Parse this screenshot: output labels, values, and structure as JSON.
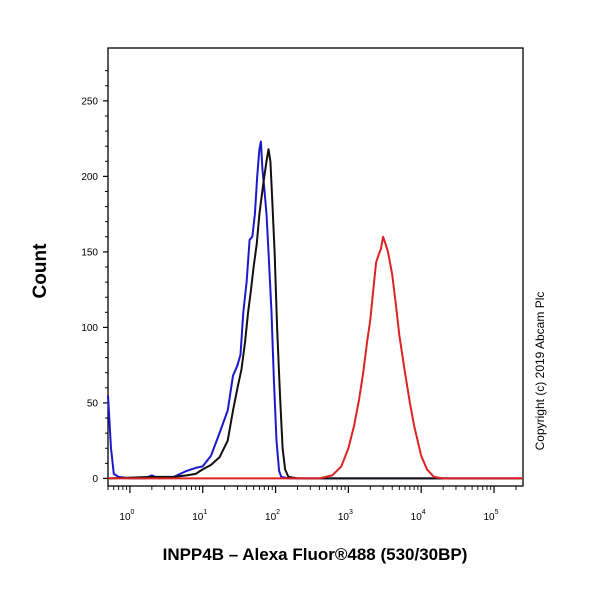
{
  "chart_data": {
    "type": "line",
    "xlabel": "INPP4B – Alexa Fluor®488 (530/30BP)",
    "ylabel": "Count",
    "x_scale": "log",
    "xlim": [
      0.5,
      250000
    ],
    "ylim": [
      -5,
      285
    ],
    "y_ticks": [
      0,
      50,
      100,
      150,
      200,
      250
    ],
    "y_tick_labels": [
      "0",
      "50",
      "100",
      "150",
      "200",
      "250"
    ],
    "x_ticks": [
      1,
      10,
      100,
      1000,
      10000,
      100000
    ],
    "x_tick_labels": [
      {
        "base": "10",
        "exp": "0"
      },
      {
        "base": "10",
        "exp": "1"
      },
      {
        "base": "10",
        "exp": "2"
      },
      {
        "base": "10",
        "exp": "3"
      },
      {
        "base": "10",
        "exp": "4"
      },
      {
        "base": "10",
        "exp": "5"
      }
    ],
    "grid": false,
    "annotation": "Copyright (c) 2019 Abcam Plc",
    "series": [
      {
        "color": "#1a1acc",
        "points": [
          [
            0.5,
            55
          ],
          [
            0.55,
            20
          ],
          [
            0.6,
            3
          ],
          [
            0.7,
            1
          ],
          [
            1,
            0
          ],
          [
            1.6,
            0
          ],
          [
            2,
            2
          ],
          [
            2.5,
            0
          ],
          [
            4,
            1
          ],
          [
            6,
            5
          ],
          [
            8,
            7
          ],
          [
            10,
            8
          ],
          [
            13,
            15
          ],
          [
            17,
            30
          ],
          [
            22,
            45
          ],
          [
            26,
            68
          ],
          [
            30,
            75
          ],
          [
            33,
            82
          ],
          [
            36,
            110
          ],
          [
            40,
            130
          ],
          [
            44,
            158
          ],
          [
            48,
            160
          ],
          [
            52,
            175
          ],
          [
            56,
            200
          ],
          [
            60,
            218
          ],
          [
            63,
            223
          ],
          [
            66,
            205
          ],
          [
            70,
            192
          ],
          [
            75,
            175
          ],
          [
            80,
            150
          ],
          [
            88,
            110
          ],
          [
            95,
            65
          ],
          [
            103,
            25
          ],
          [
            112,
            5
          ],
          [
            120,
            1
          ],
          [
            150,
            0
          ],
          [
            250000,
            0
          ]
        ]
      },
      {
        "color": "#111111",
        "points": [
          [
            0.5,
            0
          ],
          [
            2,
            1
          ],
          [
            4,
            1
          ],
          [
            6,
            2
          ],
          [
            8,
            3
          ],
          [
            10,
            6
          ],
          [
            13,
            9
          ],
          [
            17,
            14
          ],
          [
            22,
            25
          ],
          [
            26,
            45
          ],
          [
            30,
            60
          ],
          [
            34,
            72
          ],
          [
            38,
            90
          ],
          [
            42,
            110
          ],
          [
            46,
            125
          ],
          [
            50,
            140
          ],
          [
            55,
            155
          ],
          [
            60,
            175
          ],
          [
            65,
            188
          ],
          [
            70,
            200
          ],
          [
            75,
            210
          ],
          [
            80,
            218
          ],
          [
            85,
            210
          ],
          [
            90,
            185
          ],
          [
            97,
            150
          ],
          [
            105,
            100
          ],
          [
            115,
            55
          ],
          [
            125,
            20
          ],
          [
            135,
            6
          ],
          [
            150,
            1
          ],
          [
            200,
            0
          ],
          [
            250000,
            0
          ]
        ]
      },
      {
        "color": "#dd2222",
        "points": [
          [
            0.5,
            0
          ],
          [
            150,
            0
          ],
          [
            400,
            0
          ],
          [
            600,
            2
          ],
          [
            800,
            8
          ],
          [
            1000,
            20
          ],
          [
            1200,
            35
          ],
          [
            1400,
            52
          ],
          [
            1600,
            70
          ],
          [
            1800,
            90
          ],
          [
            2000,
            105
          ],
          [
            2200,
            125
          ],
          [
            2400,
            143
          ],
          [
            2600,
            148
          ],
          [
            2800,
            152
          ],
          [
            3000,
            160
          ],
          [
            3200,
            156
          ],
          [
            3500,
            150
          ],
          [
            4000,
            135
          ],
          [
            4500,
            115
          ],
          [
            5000,
            95
          ],
          [
            6000,
            70
          ],
          [
            7000,
            50
          ],
          [
            8000,
            35
          ],
          [
            10000,
            15
          ],
          [
            12000,
            6
          ],
          [
            15000,
            1
          ],
          [
            20000,
            0
          ],
          [
            250000,
            0
          ]
        ]
      }
    ]
  }
}
